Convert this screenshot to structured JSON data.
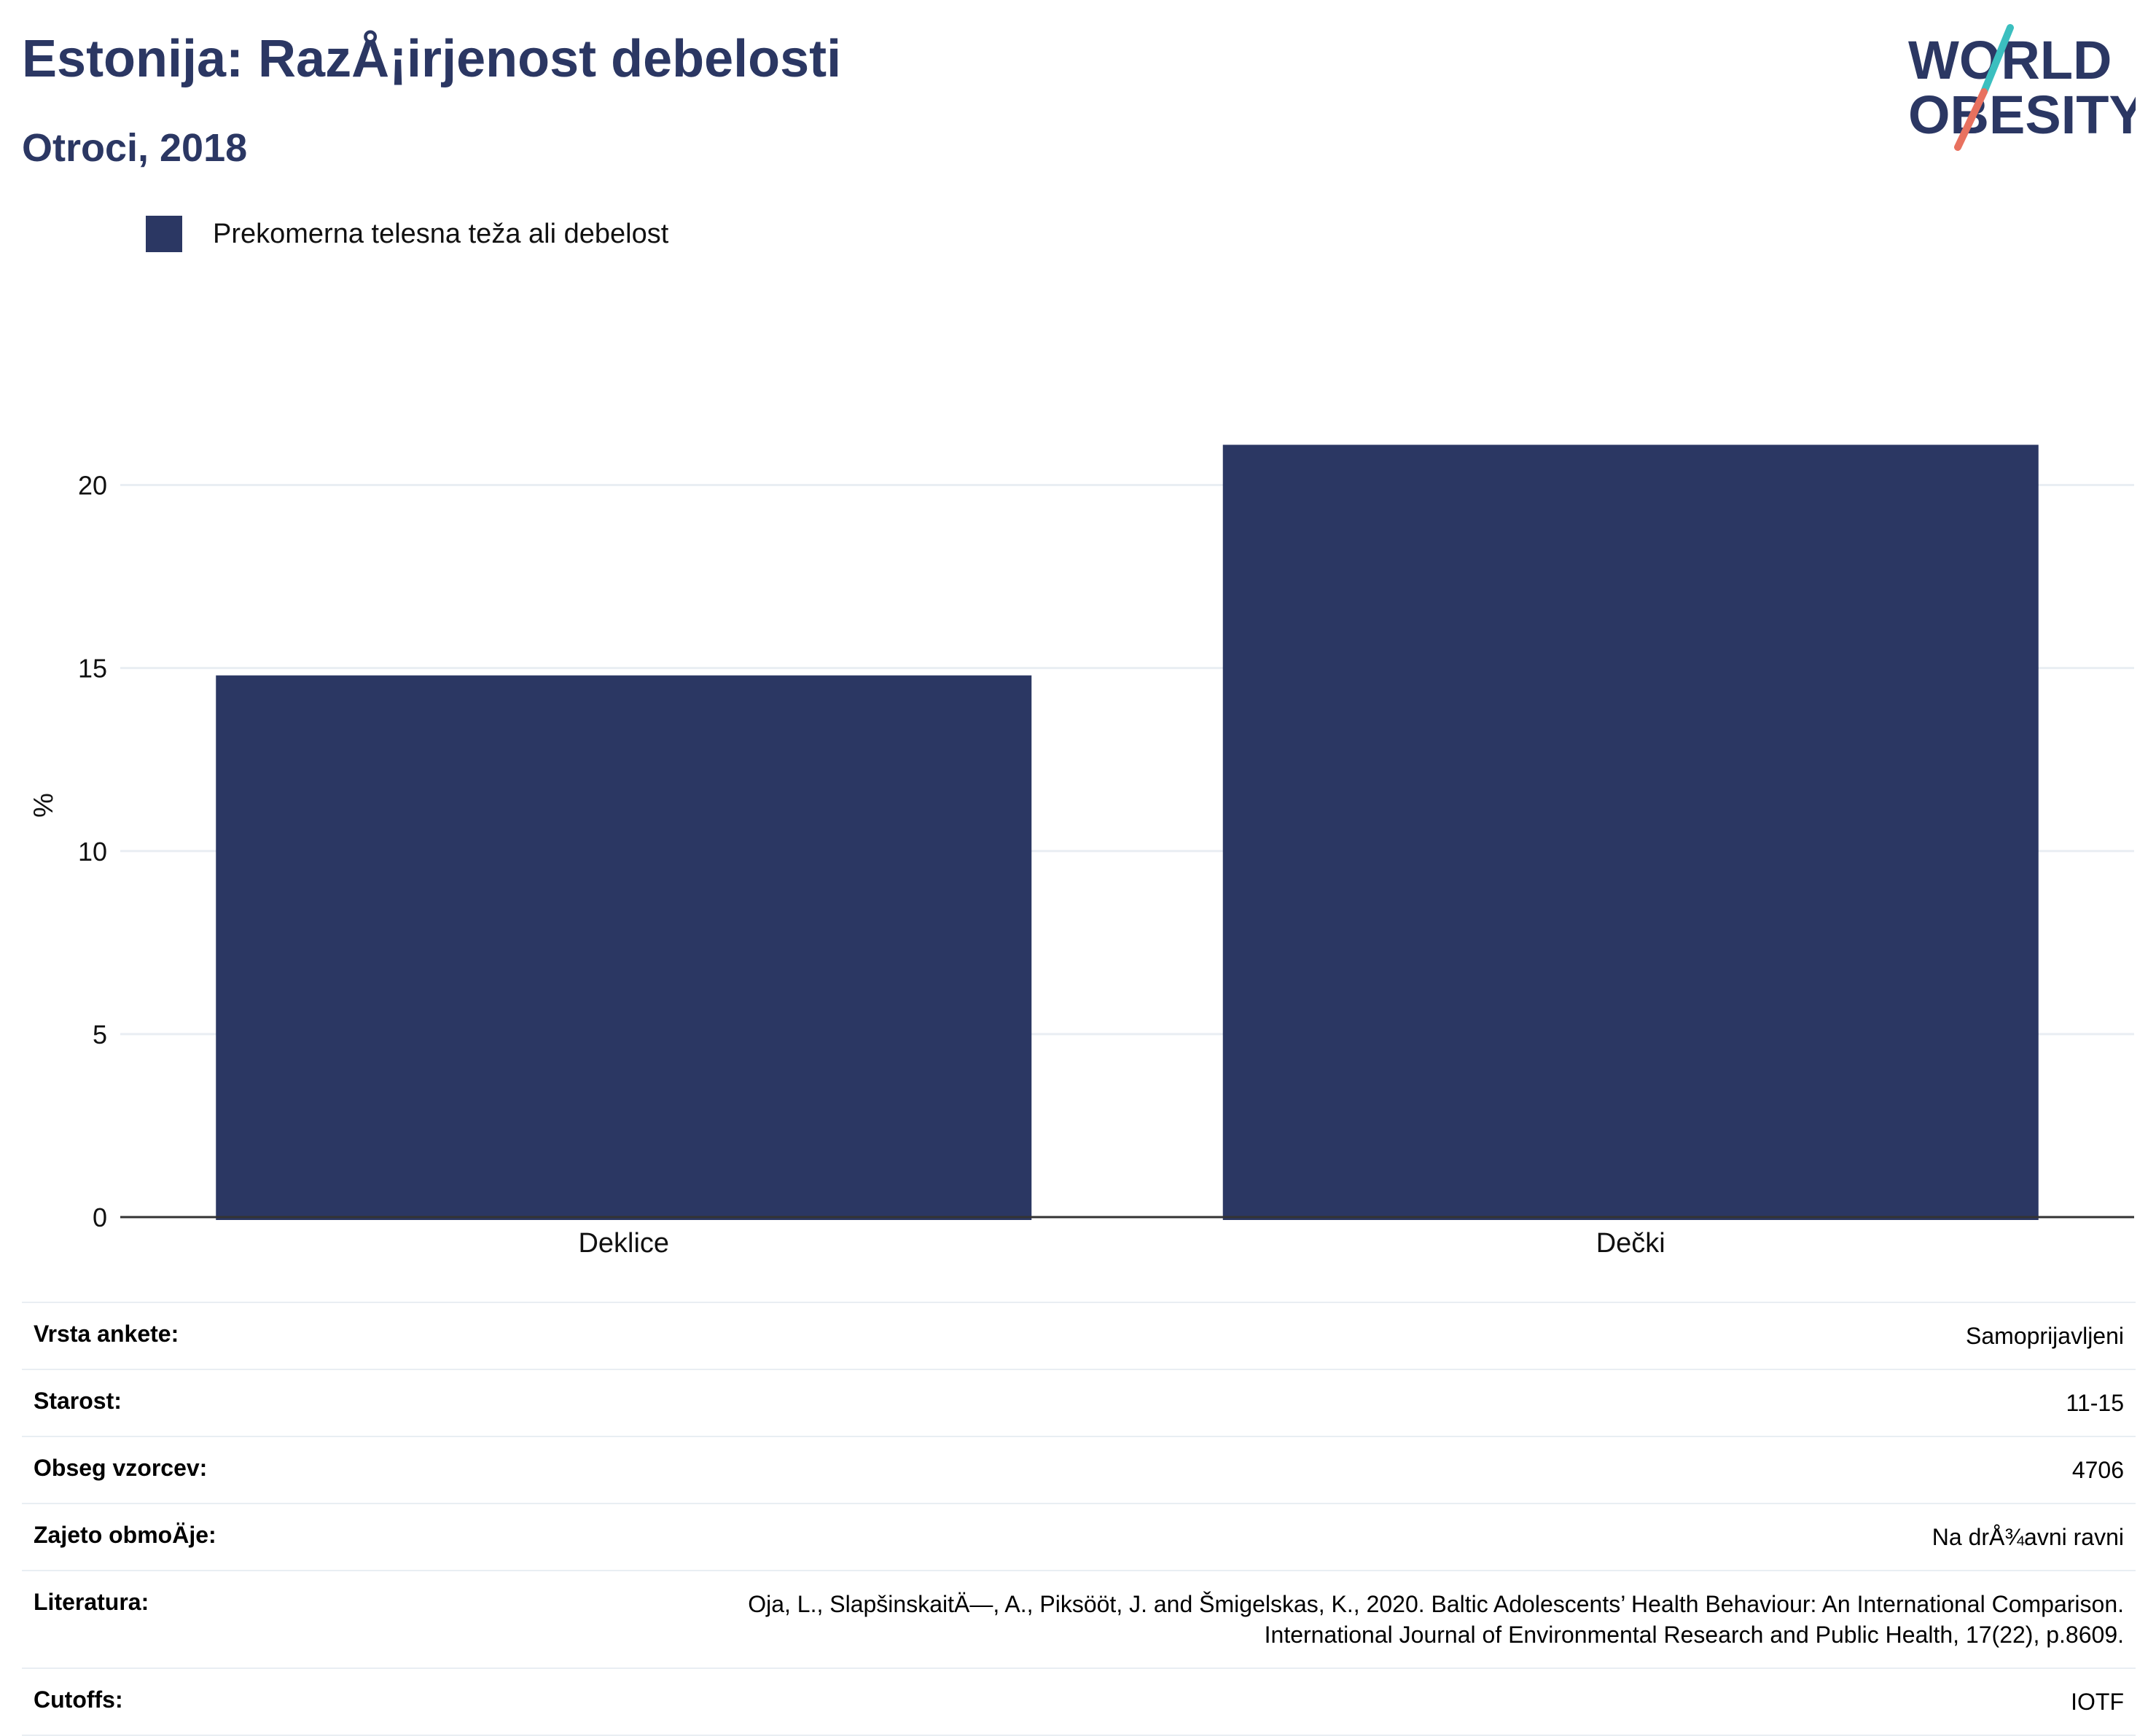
{
  "header": {
    "title": "Estonija: RazÅ¡irjenost debelosti",
    "subtitle": "Otroci, 2018"
  },
  "logo": {
    "line1": "WORLD",
    "line2": "OBESITY",
    "colors": {
      "text": "#2b3763",
      "slash_teal": "#3bbfbf",
      "slash_coral": "#e8715f"
    }
  },
  "legend": {
    "label": "Prekomerna telesna teža ali debelost",
    "color": "#2b3763"
  },
  "chart_data": {
    "type": "bar",
    "categories": [
      "Deklice",
      "Dečki"
    ],
    "series": [
      {
        "name": "Prekomerna telesna teža ali debelost",
        "values": [
          14.8,
          21.1
        ],
        "color": "#2b3763"
      }
    ],
    "xlabel": "",
    "ylabel": "%",
    "ylim": [
      0,
      22.5
    ],
    "yticks": [
      0,
      5,
      10,
      15,
      20
    ],
    "grid": true,
    "legend_position": "top-left"
  },
  "info": [
    {
      "key": "Vrsta ankete:",
      "value": [
        "Samoprijavljeni"
      ]
    },
    {
      "key": "Starost:",
      "value": [
        "11-15"
      ]
    },
    {
      "key": "Obseg vzorcev:",
      "value": [
        "4706"
      ]
    },
    {
      "key": "Zajeto obmoÄje:",
      "value": [
        "Na drÅ¾avni ravni"
      ]
    },
    {
      "key": "Literatura:",
      "value": [
        "Oja, L., SlapšinskaitÄ—, A., Piksööt, J. and Šmigelskas, K., 2020. Baltic Adolescents’ Health Behaviour: An International Comparison.",
        "International Journal of Environmental Research and Public Health, 17(22), p.8609."
      ]
    },
    {
      "key": "Cutoffs:",
      "value": [
        "IOTF"
      ]
    }
  ]
}
